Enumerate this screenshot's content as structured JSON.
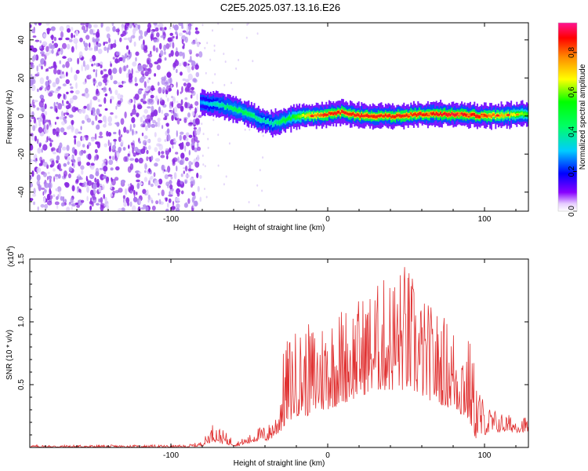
{
  "title": "C2E5.2025.037.13.16.E26",
  "chart_data": [
    {
      "type": "heatmap",
      "name": "spectrogram",
      "xlabel": "Height of straight line (km)",
      "ylabel": "Frequency (Hz)",
      "xlim": [
        -190,
        128
      ],
      "ylim": [
        -50,
        49
      ],
      "xticks": [
        -100,
        0,
        100
      ],
      "yticks": [
        -40,
        -20,
        0,
        20,
        40
      ],
      "colorbar": {
        "label": "Normalized spectral amplitude",
        "range": [
          0.0,
          0.95
        ],
        "ticks": [
          0.0,
          0.2,
          0.4,
          0.6,
          0.8
        ],
        "colormap": "rainbow (violet to red)"
      },
      "noise_region_x": [
        -190,
        -81
      ],
      "signal_ridge": {
        "x": [
          -81,
          -70,
          -60,
          -50,
          -42,
          -35,
          -30,
          -20,
          -10,
          0,
          10,
          20,
          40,
          60,
          80,
          100,
          128
        ],
        "frequency_hz": [
          7,
          6,
          4,
          1,
          -2,
          -4,
          -3,
          0,
          0,
          1,
          2,
          0,
          0,
          1,
          1,
          0,
          1
        ],
        "amplitude": [
          0.3,
          0.4,
          0.5,
          0.5,
          0.4,
          0.4,
          0.5,
          0.6,
          0.8,
          0.9,
          0.9,
          0.9,
          0.9,
          0.9,
          0.95,
          0.9,
          0.6
        ]
      }
    },
    {
      "type": "line",
      "name": "snr",
      "xlabel": "Height of straight line (km)",
      "ylabel": "SNR (10 * v/v)",
      "multiplier_label": "(x10",
      "multiplier_exponent": "4",
      "xlim": [
        -190,
        128
      ],
      "ylim": [
        0,
        1.5
      ],
      "xticks": [
        -100,
        0,
        100
      ],
      "yticks": [
        0.5,
        1.0,
        1.5
      ],
      "series": [
        {
          "name": "SNR",
          "color": "#e03030",
          "envelope": {
            "x": [
              -190,
              -90,
              -80,
              -73,
              -65,
              -58,
              -50,
              -45,
              -38,
              -32,
              -28,
              -25,
              -20,
              -10,
              0,
              10,
              20,
              30,
              40,
              50,
              60,
              70,
              80,
              90,
              95,
              100,
              110,
              120,
              128
            ],
            "upper": [
              0.02,
              0.02,
              0.05,
              0.2,
              0.12,
              0.05,
              0.1,
              0.16,
              0.18,
              0.3,
              0.8,
              0.9,
              0.95,
              1.0,
              1.08,
              1.15,
              1.2,
              1.3,
              1.4,
              1.5,
              1.2,
              1.1,
              1.0,
              0.9,
              0.6,
              0.35,
              0.28,
              0.25,
              0.25
            ],
            "lower": [
              0.0,
              0.0,
              0.01,
              0.05,
              0.02,
              0.01,
              0.03,
              0.05,
              0.05,
              0.1,
              0.15,
              0.2,
              0.25,
              0.25,
              0.3,
              0.35,
              0.4,
              0.45,
              0.45,
              0.45,
              0.4,
              0.35,
              0.3,
              0.2,
              0.05,
              0.1,
              0.12,
              0.12,
              0.12
            ]
          }
        }
      ]
    }
  ],
  "colors": {
    "snr_line": "#e03030",
    "axis": "#000000"
  }
}
